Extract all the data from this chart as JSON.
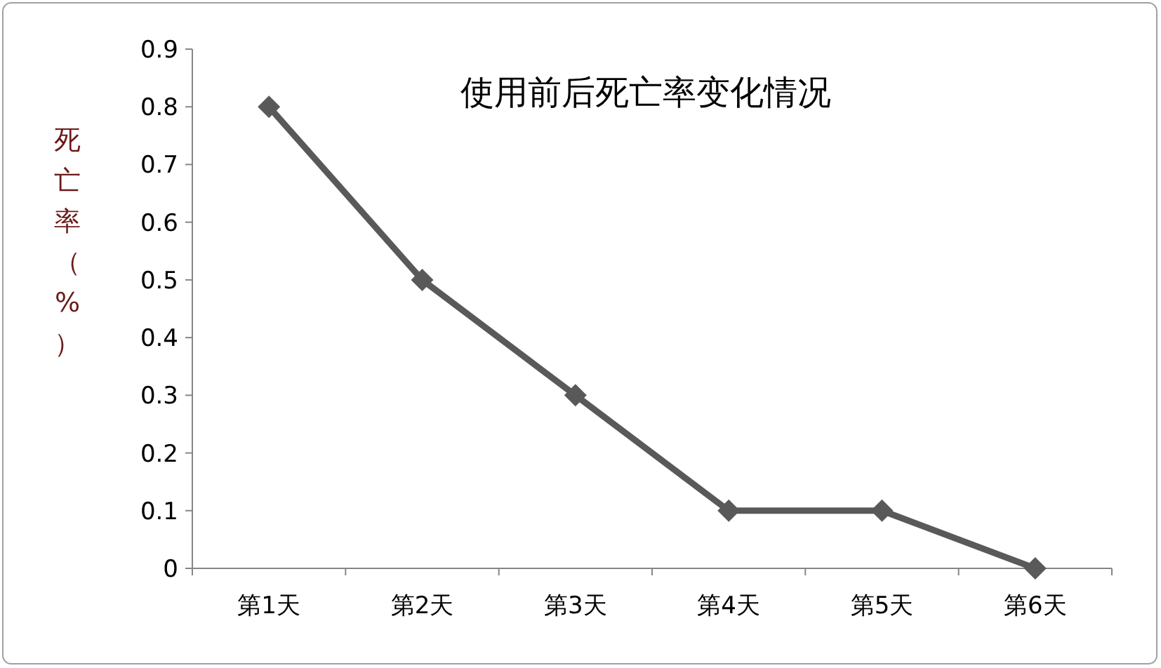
{
  "chart_data": {
    "type": "line",
    "title": "使用前后死亡率变化情况",
    "ylabel": "死亡率（%）",
    "categories": [
      "第1天",
      "第2天",
      "第3天",
      "第4天",
      "第5天",
      "第6天"
    ],
    "series": [
      {
        "color": "#595959",
        "values": [
          0.8,
          0.5,
          0.3,
          0.1,
          0.1,
          0.0
        ]
      }
    ],
    "ylim": [
      0,
      0.9
    ],
    "yticks": [
      0,
      0.1,
      0.2,
      0.3,
      0.4,
      0.5,
      0.6,
      0.7,
      0.8,
      0.9
    ],
    "marker": "diamond",
    "line_style": "solid",
    "grid": false
  }
}
